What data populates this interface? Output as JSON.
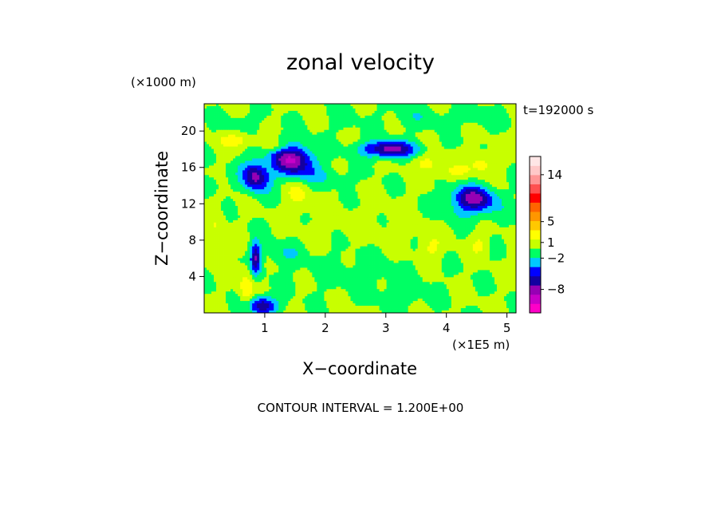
{
  "chart_data": {
    "type": "heatmap",
    "title": "zonal velocity",
    "xlabel": "X−coordinate",
    "ylabel": "Z−coordinate",
    "x_unit": "(×1E5 m)",
    "y_unit": "(×1000 m)",
    "time_label": "t=192000 s",
    "footnote": "CONTOUR INTERVAL = 1.200E+00",
    "xlim": [
      0,
      5.15
    ],
    "ylim": [
      0,
      23
    ],
    "x_ticks": [
      "1",
      "2",
      "3",
      "4",
      "5"
    ],
    "y_ticks": [
      "4",
      "8",
      "12",
      "16",
      "20"
    ],
    "colorbar": {
      "colors": [
        "#ff00c8",
        "#c800c8",
        "#9600b4",
        "#1400a0",
        "#0000ff",
        "#00c8ff",
        "#00ff64",
        "#c8ff00",
        "#ffff00",
        "#ffc800",
        "#ff9600",
        "#ff6400",
        "#ff0000",
        "#ff5050",
        "#ff9696",
        "#ffc8c8",
        "#ffe6e6"
      ],
      "tick_labels": [
        "−8",
        "−2",
        "1",
        "5",
        "14"
      ],
      "tick_values": [
        -8,
        -2,
        1,
        5,
        14
      ],
      "vmin": -12.5,
      "vmax": 17.5
    },
    "field": {
      "background": 0,
      "blobs": [
        {
          "x": 1.45,
          "z": 16.8,
          "rx": 0.35,
          "rz": 1.8,
          "v": -9,
          "tilt": -0.5
        },
        {
          "x": 0.85,
          "z": 15.0,
          "rx": 0.22,
          "rz": 1.6,
          "v": -8,
          "tilt": -0.4
        },
        {
          "x": 3.05,
          "z": 18.0,
          "rx": 0.45,
          "rz": 0.9,
          "v": -8,
          "tilt": 0
        },
        {
          "x": 4.45,
          "z": 12.6,
          "rx": 0.35,
          "rz": 1.3,
          "v": -8,
          "tilt": -0.5
        },
        {
          "x": 0.85,
          "z": 6.0,
          "rx": 0.09,
          "rz": 1.8,
          "v": -7,
          "tilt": 0
        },
        {
          "x": 0.95,
          "z": 0.8,
          "rx": 0.25,
          "rz": 1.0,
          "v": -7,
          "tilt": 0
        },
        {
          "x": 0.7,
          "z": 2.5,
          "rx": 0.12,
          "rz": 2.5,
          "v": 3,
          "tilt": 0
        },
        {
          "x": 0.55,
          "z": 19.0,
          "rx": 0.3,
          "rz": 0.8,
          "v": 2.5,
          "tilt": -0.4
        },
        {
          "x": 1.2,
          "z": 18.3,
          "rx": 0.22,
          "rz": 0.7,
          "v": 3,
          "tilt": -0.4
        },
        {
          "x": 1.55,
          "z": 13.0,
          "rx": 0.22,
          "rz": 1.8,
          "v": 1.8,
          "tilt": -0.3
        },
        {
          "x": 3.7,
          "z": 16.5,
          "rx": 0.25,
          "rz": 1.0,
          "v": 2.2,
          "tilt": -0.3
        },
        {
          "x": 4.1,
          "z": 15.5,
          "rx": 0.3,
          "rz": 0.8,
          "v": 2,
          "tilt": -0.3
        },
        {
          "x": 4.6,
          "z": 16.5,
          "rx": 0.2,
          "rz": 1.2,
          "v": 2.5,
          "tilt": -0.2
        },
        {
          "x": 3.75,
          "z": 7.0,
          "rx": 0.18,
          "rz": 1.2,
          "v": 1.8,
          "tilt": 0
        },
        {
          "x": 4.55,
          "z": 7.5,
          "rx": 0.15,
          "rz": 1.0,
          "v": 2,
          "tilt": 0
        },
        {
          "x": 0.2,
          "z": 9.0,
          "rx": 0.15,
          "rz": 3.0,
          "v": 1.5,
          "tilt": 0
        },
        {
          "x": 2.2,
          "z": 10.0,
          "rx": 0.7,
          "rz": 2.0,
          "v": 0.6,
          "tilt": 0
        },
        {
          "x": 3.4,
          "z": 9.5,
          "rx": 0.6,
          "rz": 2.5,
          "v": 0.7,
          "tilt": 0
        },
        {
          "x": 1.3,
          "z": 6.5,
          "rx": 0.3,
          "rz": 1.2,
          "v": -1.8,
          "tilt": 0
        },
        {
          "x": 0.1,
          "z": 14.0,
          "rx": 0.15,
          "rz": 1.0,
          "v": -2,
          "tilt": 0
        },
        {
          "x": 2.0,
          "z": 15.0,
          "rx": 0.4,
          "rz": 1.0,
          "v": -1.5,
          "tilt": -0.3
        },
        {
          "x": 4.3,
          "z": 11.0,
          "rx": 0.6,
          "rz": 1.2,
          "v": -1.5,
          "tilt": -0.2
        },
        {
          "x": 3.3,
          "z": 2.0,
          "rx": 0.4,
          "rz": 1.5,
          "v": -1.3,
          "tilt": 0
        },
        {
          "x": 2.5,
          "z": 4.5,
          "rx": 0.9,
          "rz": 2.0,
          "v": -1.0,
          "tilt": 0
        },
        {
          "x": 2.3,
          "z": 21.5,
          "rx": 0.2,
          "rz": 1.5,
          "v": -1.2,
          "tilt": 0
        },
        {
          "x": 3.5,
          "z": 21.5,
          "rx": 0.5,
          "rz": 1.3,
          "v": -1.2,
          "tilt": 0
        },
        {
          "x": 4.6,
          "z": 21.5,
          "rx": 0.5,
          "rz": 1.0,
          "v": -1.2,
          "tilt": 0
        },
        {
          "x": 0.6,
          "z": 21.0,
          "rx": 0.3,
          "rz": 1.0,
          "v": -1.0,
          "tilt": 0
        }
      ]
    }
  }
}
